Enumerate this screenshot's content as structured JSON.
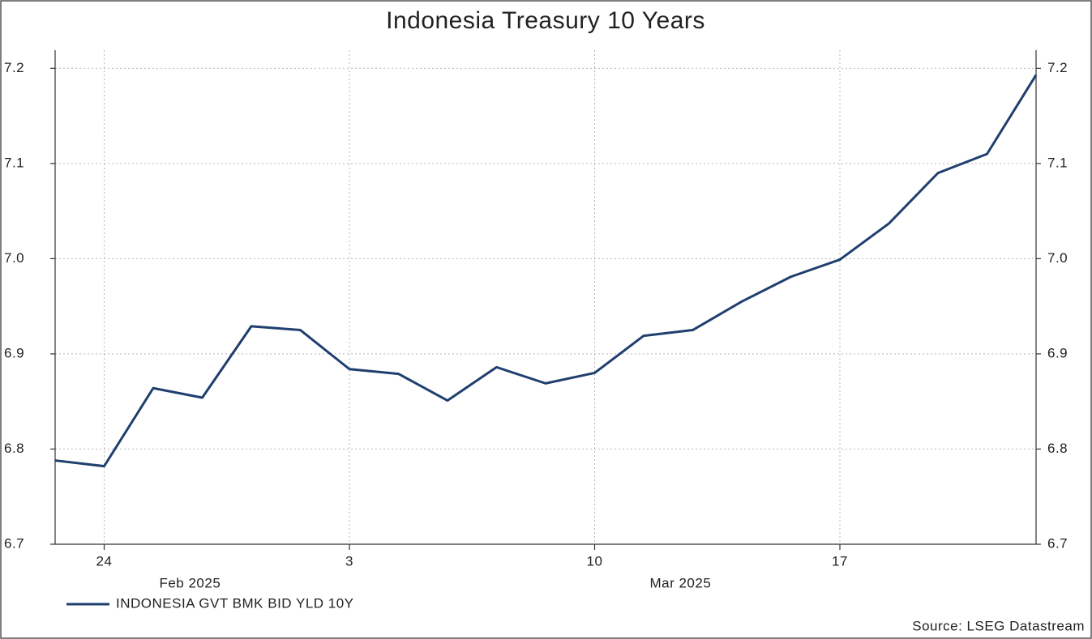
{
  "chart_data": {
    "type": "line",
    "title": "Indonesia Treasury 10 Years",
    "x": [
      "2025-02-21",
      "2025-02-24",
      "2025-02-25",
      "2025-02-26",
      "2025-02-27",
      "2025-02-28",
      "2025-03-03",
      "2025-03-04",
      "2025-03-05",
      "2025-03-06",
      "2025-03-07",
      "2025-03-10",
      "2025-03-11",
      "2025-03-12",
      "2025-03-13",
      "2025-03-14",
      "2025-03-17",
      "2025-03-18",
      "2025-03-19",
      "2025-03-20",
      "2025-03-21"
    ],
    "series": [
      {
        "name": "INDONESIA GVT BMK BID YLD 10Y",
        "color": "#1f3f6e",
        "values": [
          6.788,
          6.782,
          6.864,
          6.854,
          6.929,
          6.925,
          6.884,
          6.879,
          6.851,
          6.886,
          6.869,
          6.88,
          6.919,
          6.925,
          6.955,
          6.981,
          6.999,
          7.037,
          7.09,
          7.11,
          7.193
        ]
      }
    ],
    "xlim": [
      "2025-02-21",
      "2025-03-21"
    ],
    "xticks": [
      {
        "value": "2025-02-24",
        "label": "24"
      },
      {
        "value": "2025-03-03",
        "label": "3"
      },
      {
        "value": "2025-03-10",
        "label": "10"
      },
      {
        "value": "2025-03-17",
        "label": "17"
      }
    ],
    "month_labels": [
      {
        "value": "2025-02",
        "label": "Feb 2025"
      },
      {
        "value": "2025-03",
        "label": "Mar 2025"
      }
    ],
    "ylim": [
      6.7,
      7.219
    ],
    "yticks": [
      6.7,
      6.8,
      6.9,
      {
        "value": 7,
        "label": "7.0"
      },
      7.1,
      7.2
    ],
    "grid": true,
    "source": "Source: LSEG Datastream"
  }
}
